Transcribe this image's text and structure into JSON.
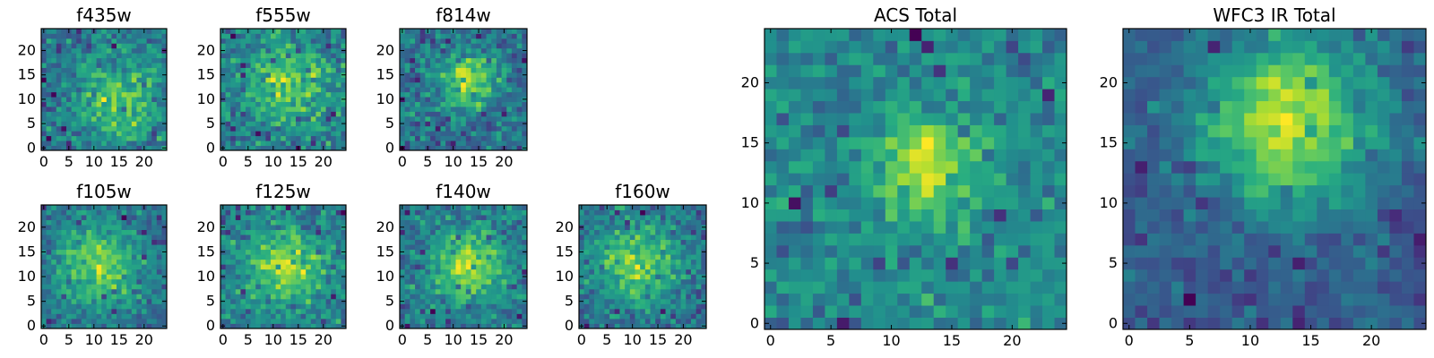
{
  "chart_data": [
    {
      "type": "heatmap",
      "title": "f435w",
      "grid_size": 25,
      "colormap": "viridis",
      "xticks": [
        0,
        5,
        10,
        15,
        20
      ],
      "yticks": [
        0,
        5,
        10,
        15,
        20
      ],
      "xlim": [
        0,
        24
      ],
      "ylim": [
        0,
        24
      ],
      "seed": 11,
      "blob": {
        "x": 15,
        "y": 10,
        "sigma": 6,
        "amp": 0.35
      },
      "noise": 0.65
    },
    {
      "type": "heatmap",
      "title": "f555w",
      "grid_size": 25,
      "colormap": "viridis",
      "xticks": [
        0,
        5,
        10,
        15,
        20
      ],
      "yticks": [
        0,
        5,
        10,
        15,
        20
      ],
      "xlim": [
        0,
        24
      ],
      "ylim": [
        0,
        24
      ],
      "seed": 23,
      "blob": {
        "x": 13,
        "y": 13,
        "sigma": 5,
        "amp": 0.35
      },
      "noise": 0.65
    },
    {
      "type": "heatmap",
      "title": "f814w",
      "grid_size": 25,
      "colormap": "viridis",
      "xticks": [
        0,
        5,
        10,
        15,
        20
      ],
      "yticks": [
        0,
        5,
        10,
        15,
        20
      ],
      "xlim": [
        0,
        24
      ],
      "ylim": [
        0,
        24
      ],
      "seed": 37,
      "blob": {
        "x": 13,
        "y": 14,
        "sigma": 4,
        "amp": 0.45
      },
      "noise": 0.6
    },
    {
      "type": "heatmap",
      "title": "f105w",
      "grid_size": 25,
      "colormap": "viridis",
      "xticks": [
        0,
        5,
        10,
        15,
        20
      ],
      "yticks": [
        0,
        5,
        10,
        15,
        20
      ],
      "xlim": [
        0,
        24
      ],
      "ylim": [
        0,
        24
      ],
      "seed": 41,
      "blob": {
        "x": 11,
        "y": 12,
        "sigma": 6,
        "amp": 0.45
      },
      "noise": 0.55
    },
    {
      "type": "heatmap",
      "title": "f125w",
      "grid_size": 25,
      "colormap": "viridis",
      "xticks": [
        0,
        5,
        10,
        15,
        20
      ],
      "yticks": [
        0,
        5,
        10,
        15,
        20
      ],
      "xlim": [
        0,
        24
      ],
      "ylim": [
        0,
        24
      ],
      "seed": 53,
      "blob": {
        "x": 12,
        "y": 12,
        "sigma": 5,
        "amp": 0.4
      },
      "noise": 0.6
    },
    {
      "type": "heatmap",
      "title": "f140w",
      "grid_size": 25,
      "colormap": "viridis",
      "xticks": [
        0,
        5,
        10,
        15,
        20
      ],
      "yticks": [
        0,
        5,
        10,
        15,
        20
      ],
      "xlim": [
        0,
        24
      ],
      "ylim": [
        0,
        24
      ],
      "seed": 67,
      "blob": {
        "x": 13,
        "y": 12,
        "sigma": 5,
        "amp": 0.45
      },
      "noise": 0.55
    },
    {
      "type": "heatmap",
      "title": "f160w",
      "grid_size": 25,
      "colormap": "viridis",
      "xticks": [
        0,
        5,
        10,
        15,
        20
      ],
      "yticks": [
        0,
        5,
        10,
        15,
        20
      ],
      "xlim": [
        0,
        24
      ],
      "ylim": [
        0,
        24
      ],
      "seed": 79,
      "blob": {
        "x": 11,
        "y": 13,
        "sigma": 6,
        "amp": 0.4
      },
      "noise": 0.6
    },
    {
      "type": "heatmap",
      "title": "ACS Total",
      "grid_size": 25,
      "colormap": "viridis",
      "xticks": [
        0,
        5,
        10,
        15,
        20
      ],
      "yticks": [
        0,
        5,
        10,
        15,
        20
      ],
      "xlim": [
        0,
        24
      ],
      "ylim": [
        0,
        24
      ],
      "seed": 97,
      "blob": {
        "x": 13,
        "y": 13,
        "sigma": 3,
        "amp": 0.45
      },
      "noise": 0.55
    },
    {
      "type": "heatmap",
      "title": "WFC3 IR Total",
      "grid_size": 25,
      "colormap": "viridis",
      "xticks": [
        0,
        5,
        10,
        15,
        20
      ],
      "yticks": [
        0,
        5,
        10,
        15,
        20
      ],
      "xlim": [
        0,
        24
      ],
      "ylim": [
        0,
        24
      ],
      "seed": 131,
      "blob": {
        "x": 13,
        "y": 17,
        "sigma": 5,
        "amp": 0.6
      },
      "noise": 0.4
    }
  ]
}
